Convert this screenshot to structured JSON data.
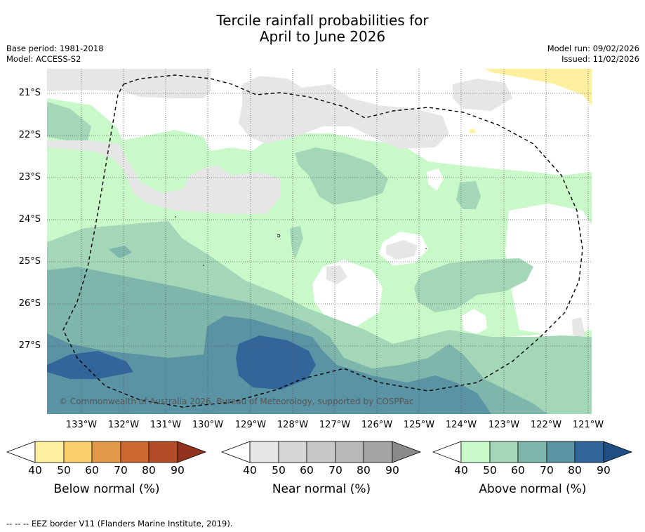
{
  "header": {
    "title_line1": "Tercile rainfall probabilities for",
    "title_line2": "April to June 2026",
    "base_period": "Base period: 1981-2018",
    "model": "Model: ACCESS-S2",
    "model_run": "Model run: 09/02/2026",
    "issued": "Issued: 11/02/2026"
  },
  "map": {
    "copyright": "© Commonwealth of Australia 2026, Bureau of Meteorology, supported by COSPPac",
    "lat_labels": [
      "21°S",
      "22°S",
      "23°S",
      "24°S",
      "25°S",
      "26°S",
      "27°S"
    ],
    "lon_labels": [
      "133°W",
      "132°W",
      "131°W",
      "130°W",
      "129°W",
      "128°W",
      "127°W",
      "126°W",
      "125°W",
      "124°W",
      "123°W",
      "122°W",
      "121°W"
    ],
    "colors": {
      "near_normal_40": "#e6e6e6",
      "above_40": "#c9f9c9",
      "above_50": "#a3d7b8",
      "above_60": "#7fb6ab",
      "above_70": "#5a93a3",
      "above_80": "#32669a",
      "below_40": "#fff0a0"
    }
  },
  "colorbars": [
    {
      "label": "Below normal (%)",
      "ticks": [
        "40",
        "50",
        "60",
        "70",
        "80",
        "90"
      ],
      "colors": [
        "#fff0a0",
        "#fdcf6a",
        "#e29a4a",
        "#cf6833",
        "#b44c28",
        "#943220"
      ]
    },
    {
      "label": "Near normal (%)",
      "ticks": [
        "40",
        "50",
        "60",
        "70",
        "80",
        "90"
      ],
      "colors": [
        "#e6e6e6",
        "#d6d6d6",
        "#c8c8c8",
        "#b8b8b8",
        "#a4a4a4",
        "#8a8a8a"
      ]
    },
    {
      "label": "Above normal (%)",
      "ticks": [
        "40",
        "50",
        "60",
        "70",
        "80",
        "90"
      ],
      "colors": [
        "#c9f9c9",
        "#a3d7b8",
        "#7fb6ab",
        "#5a93a3",
        "#32669a",
        "#1f4e85"
      ]
    }
  ],
  "footer": {
    "legend_symbol": "-- -- --",
    "legend_text": "EEZ border V11 (Flanders Marine Institute, 2019)."
  }
}
